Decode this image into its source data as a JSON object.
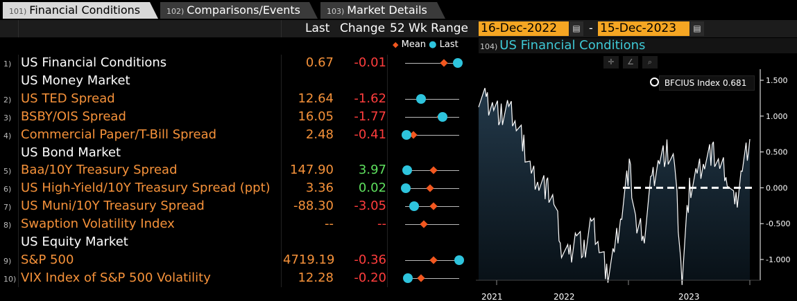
{
  "tabs": [
    {
      "num": "101)",
      "label": "Financial Conditions",
      "active": true
    },
    {
      "num": "102)",
      "label": "Comparisons/Events",
      "active": false
    },
    {
      "num": "103)",
      "label": "Market Details",
      "active": false
    }
  ],
  "header": {
    "last": "Last",
    "change": "Change",
    "range": "52 Wk Range"
  },
  "dates": {
    "start": "16-Dec-2022",
    "end": "15-Dec-2023",
    "sep": "-"
  },
  "legend": {
    "mean": "Mean",
    "last": "Last"
  },
  "colors": {
    "accent": "#f6923a",
    "last_dot": "#2ec4dd",
    "mean_diamond": "#f2571f",
    "negative": "#ff3d3d",
    "positive": "#5ee05e"
  },
  "rows": [
    {
      "type": "item",
      "idx": "1)",
      "label": "US Financial Conditions",
      "labelColor": "white",
      "last": "0.67",
      "change": "-0.01",
      "changeColor": "red",
      "mean": 0.72,
      "lastpos": 0.98
    },
    {
      "type": "section",
      "label": "US Money Market"
    },
    {
      "type": "item",
      "idx": "2)",
      "label": "US TED Spread",
      "labelColor": "orange",
      "last": "12.64",
      "change": "-1.62",
      "changeColor": "red",
      "mean": 0.29,
      "lastpos": 0.3
    },
    {
      "type": "item",
      "idx": "3)",
      "label": "BSBY/OIS Spread",
      "labelColor": "orange",
      "last": "16.05",
      "change": "-1.77",
      "changeColor": "red",
      "mean": 0.66,
      "lastpos": 0.69
    },
    {
      "type": "item",
      "idx": "4)",
      "label": "Commercial Paper/T-Bill Spread",
      "labelColor": "orange",
      "last": "2.48",
      "change": "-0.41",
      "changeColor": "red",
      "mean": 0.16,
      "lastpos": 0.03
    },
    {
      "type": "section",
      "label": "US Bond Market"
    },
    {
      "type": "item",
      "idx": "5)",
      "label": "Baa/10Y Treasury Spread",
      "labelColor": "orange",
      "last": "147.90",
      "change": "3.97",
      "changeColor": "green",
      "mean": 0.53,
      "lastpos": 0.04
    },
    {
      "type": "item",
      "idx": "6)",
      "label": "US High-Yield/10Y Treasury Spread (ppt)",
      "labelColor": "orange",
      "last": "3.36",
      "change": "0.02",
      "changeColor": "green",
      "mean": 0.46,
      "lastpos": 0.01
    },
    {
      "type": "item",
      "idx": "7)",
      "label": "US Muni/10Y Treasury Spread",
      "labelColor": "orange",
      "last": "-88.30",
      "change": "-3.05",
      "changeColor": "red",
      "mean": 0.52,
      "lastpos": 0.17
    },
    {
      "type": "item",
      "idx": "8)",
      "label": "Swaption Volatility Index",
      "labelColor": "orange",
      "last": "--",
      "change": "--",
      "changeColor": "red",
      "mean": 0.35,
      "lastpos": null
    },
    {
      "type": "section",
      "label": "US Equity Market"
    },
    {
      "type": "item",
      "idx": "9)",
      "label": "S&P 500",
      "labelColor": "orange",
      "last": "4719.19",
      "change": "-0.36",
      "changeColor": "red",
      "mean": 0.52,
      "lastpos": 1.0
    },
    {
      "type": "item",
      "idx": "10)",
      "label": "VIX Index of S&P 500 Volatility",
      "labelColor": "orange",
      "last": "12.28",
      "change": "-0.20",
      "changeColor": "red",
      "mean": 0.3,
      "lastpos": 0.05
    }
  ],
  "chart": {
    "num": "104)",
    "title": "US Financial Conditions",
    "tooltip": {
      "label": "BFCIUS Index",
      "value": "0.681"
    },
    "tools": [
      "crosshair-icon",
      "line-tool-icon",
      "zoom-icon"
    ],
    "y_ticks": [
      "1.500",
      "1.000",
      "0.500",
      "0.000",
      "-0.500",
      "-1.000"
    ],
    "x_ticks": [
      "2021",
      "2022",
      "2023"
    ]
  },
  "chart_data": {
    "type": "area",
    "series": [
      {
        "name": "BFCIUS Index",
        "x": [
          "2020-12",
          "2021-01",
          "2021-02",
          "2021-03",
          "2021-04",
          "2021-05",
          "2021-06",
          "2021-07",
          "2021-08",
          "2021-09",
          "2021-10",
          "2021-11",
          "2021-12",
          "2022-01",
          "2022-02",
          "2022-03",
          "2022-04",
          "2022-05",
          "2022-06",
          "2022-07",
          "2022-08",
          "2022-09",
          "2022-10",
          "2022-11",
          "2022-12",
          "2023-01",
          "2023-02",
          "2023-03",
          "2023-04",
          "2023-05",
          "2023-06",
          "2023-07",
          "2023-08",
          "2023-09",
          "2023-10",
          "2023-11",
          "2023-12"
        ],
        "y": [
          1.3,
          1.2,
          1.15,
          1.0,
          1.1,
          0.9,
          0.6,
          0.2,
          0.1,
          0.0,
          -0.2,
          -0.8,
          -1.0,
          -0.6,
          -0.9,
          -0.5,
          -0.8,
          -1.2,
          -0.9,
          -0.3,
          0.3,
          -0.6,
          -0.6,
          0.1,
          0.4,
          0.5,
          0.3,
          -1.25,
          0.0,
          0.2,
          0.4,
          0.5,
          0.3,
          0.2,
          -0.3,
          0.3,
          0.68
        ]
      }
    ],
    "ylim": [
      -1.25,
      1.75
    ],
    "y_ticks": [
      1.5,
      1.0,
      0.5,
      0.0,
      -0.5,
      -1.0
    ],
    "x_ticks": [
      "2021",
      "2022",
      "2023"
    ],
    "reference_line": 0.0,
    "last_value": 0.681
  }
}
